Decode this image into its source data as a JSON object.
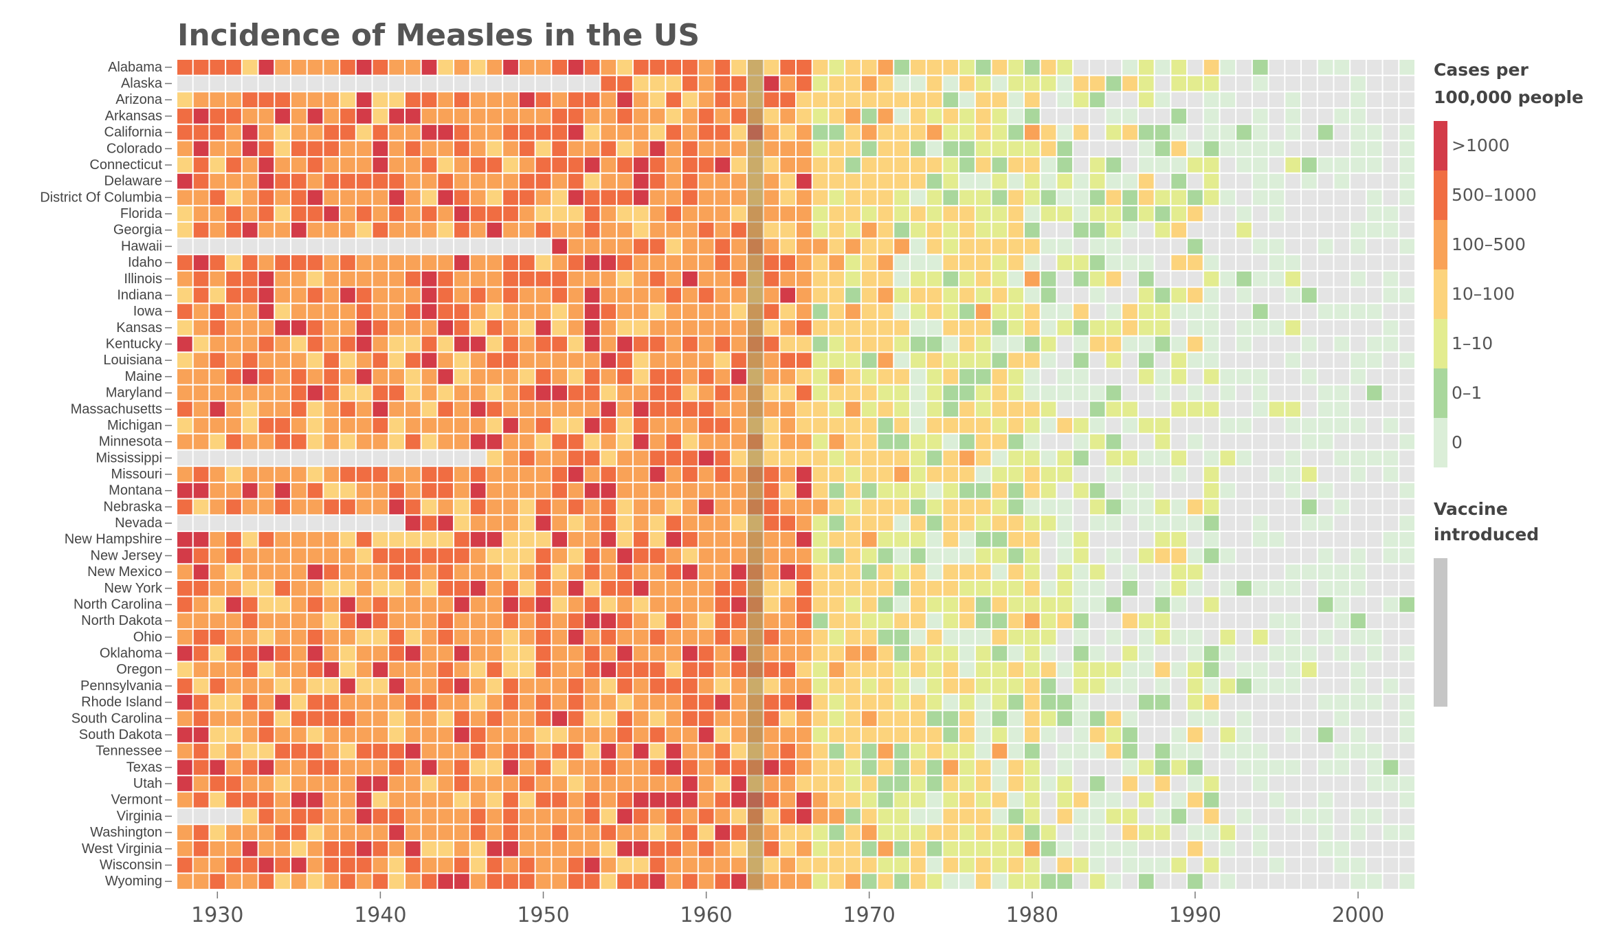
{
  "chart_data": {
    "type": "heatmap",
    "title": "Incidence of Measles in the US",
    "legend": {
      "title_line1": "Cases per",
      "title_line2": "100,000 people",
      "bins": [
        {
          "label": ">1000",
          "color": "#d33b48"
        },
        {
          "label": "500–1000",
          "color": "#f06d42"
        },
        {
          "label": "100–500",
          "color": "#f9a257"
        },
        {
          "label": "10–100",
          "color": "#fcd37c"
        },
        {
          "label": "1–10",
          "color": "#e3ec8f"
        },
        {
          "label": "0–1",
          "color": "#a9d79c"
        },
        {
          "label": "0",
          "color": "#dbeed8"
        }
      ],
      "vaccine_line1": "Vaccine",
      "vaccine_line2": "introduced",
      "vaccine_color": "#c6c6c6",
      "missing_color": "#e4e4e4"
    },
    "vaccine_year": 1963,
    "years": [
      1928,
      2003
    ],
    "x_ticks": [
      "1930",
      "1940",
      "1950",
      "1960",
      "1970",
      "1980",
      "1990",
      "2000"
    ],
    "rows": [
      {
        "state": "Alabama",
        "seed": 1
      },
      {
        "state": "Alaska",
        "seed": 2,
        "missing_to": 1953
      },
      {
        "state": "Arizona",
        "seed": 3
      },
      {
        "state": "Arkansas",
        "seed": 4
      },
      {
        "state": "California",
        "seed": 5
      },
      {
        "state": "Colorado",
        "seed": 6
      },
      {
        "state": "Connecticut",
        "seed": 7
      },
      {
        "state": "Delaware",
        "seed": 8
      },
      {
        "state": "District Of Columbia",
        "seed": 9
      },
      {
        "state": "Florida",
        "seed": 10
      },
      {
        "state": "Georgia",
        "seed": 11
      },
      {
        "state": "Hawaii",
        "seed": 12,
        "missing_to": 1950
      },
      {
        "state": "Idaho",
        "seed": 13
      },
      {
        "state": "Illinois",
        "seed": 14
      },
      {
        "state": "Indiana",
        "seed": 15
      },
      {
        "state": "Iowa",
        "seed": 16
      },
      {
        "state": "Kansas",
        "seed": 17
      },
      {
        "state": "Kentucky",
        "seed": 18
      },
      {
        "state": "Louisiana",
        "seed": 19
      },
      {
        "state": "Maine",
        "seed": 20
      },
      {
        "state": "Maryland",
        "seed": 21
      },
      {
        "state": "Massachusetts",
        "seed": 22
      },
      {
        "state": "Michigan",
        "seed": 23
      },
      {
        "state": "Minnesota",
        "seed": 24
      },
      {
        "state": "Mississippi",
        "seed": 25,
        "missing_to": 1946
      },
      {
        "state": "Missouri",
        "seed": 26
      },
      {
        "state": "Montana",
        "seed": 27
      },
      {
        "state": "Nebraska",
        "seed": 28
      },
      {
        "state": "Nevada",
        "seed": 29,
        "missing_to": 1941
      },
      {
        "state": "New Hampshire",
        "seed": 30
      },
      {
        "state": "New Jersey",
        "seed": 31
      },
      {
        "state": "New Mexico",
        "seed": 32
      },
      {
        "state": "New York",
        "seed": 33
      },
      {
        "state": "North Carolina",
        "seed": 34
      },
      {
        "state": "North Dakota",
        "seed": 35
      },
      {
        "state": "Ohio",
        "seed": 36
      },
      {
        "state": "Oklahoma",
        "seed": 37
      },
      {
        "state": "Oregon",
        "seed": 38
      },
      {
        "state": "Pennsylvania",
        "seed": 39
      },
      {
        "state": "Rhode Island",
        "seed": 40
      },
      {
        "state": "South Carolina",
        "seed": 41
      },
      {
        "state": "South Dakota",
        "seed": 42
      },
      {
        "state": "Tennessee",
        "seed": 43
      },
      {
        "state": "Texas",
        "seed": 44
      },
      {
        "state": "Utah",
        "seed": 45
      },
      {
        "state": "Vermont",
        "seed": 46
      },
      {
        "state": "Virginia",
        "seed": 47,
        "missing_to": 1931
      },
      {
        "state": "Washington",
        "seed": 48
      },
      {
        "state": "West Virginia",
        "seed": 49
      },
      {
        "state": "Wisconsin",
        "seed": 50
      },
      {
        "state": "Wyoming",
        "seed": 51
      }
    ]
  }
}
